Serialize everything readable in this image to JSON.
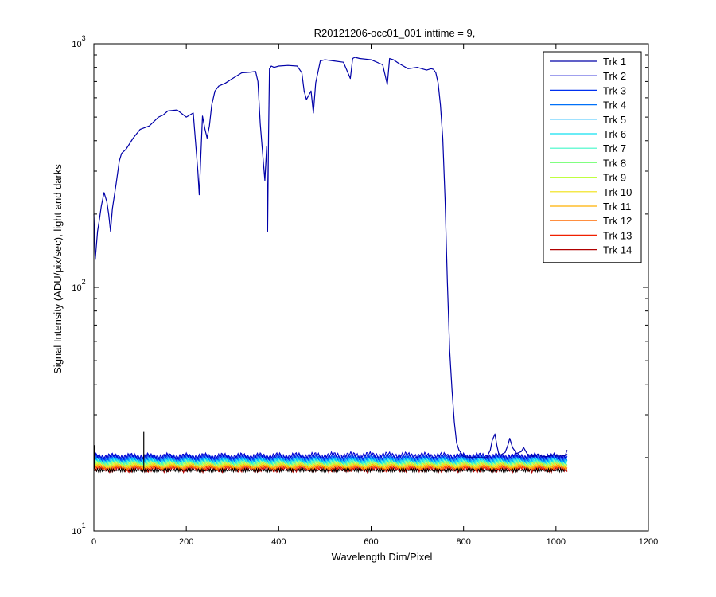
{
  "chart_data": {
    "type": "line",
    "title": "R20121206-occ01_001 inttime = 9,",
    "xlabel": "Wavelength Dim/Pixel",
    "ylabel": "Signal Intensity (ADU/pix/sec), light and darks",
    "xlim": [
      0,
      1200
    ],
    "ylim": [
      10,
      1000
    ],
    "yscale": "log",
    "x_ticks": [
      0,
      200,
      400,
      600,
      800,
      1000,
      1200
    ],
    "y_ticks": [
      {
        "base": "10",
        "exp": "1"
      },
      {
        "base": "10",
        "exp": "2"
      },
      {
        "base": "10",
        "exp": "3"
      }
    ],
    "legend_position": "top-right",
    "series": [
      {
        "name": "Trk 1",
        "color": "#0000A8",
        "x": [
          0,
          3,
          8,
          12,
          16,
          22,
          28,
          32,
          36,
          40,
          48,
          55,
          60,
          70,
          85,
          100,
          120,
          140,
          150,
          160,
          180,
          200,
          215,
          225,
          228,
          235,
          240,
          245,
          250,
          255,
          262,
          270,
          285,
          300,
          320,
          340,
          350,
          355,
          360,
          366,
          370,
          374,
          376,
          378,
          380,
          384,
          390,
          400,
          420,
          440,
          450,
          455,
          460,
          470,
          475,
          480,
          490,
          500,
          520,
          540,
          555,
          560,
          565,
          575,
          600,
          625,
          635,
          640,
          648,
          660,
          680,
          700,
          720,
          730,
          735,
          740,
          745,
          750,
          755,
          760,
          765,
          770,
          775,
          780,
          785,
          790,
          800,
          820,
          850,
          858,
          862,
          868,
          872,
          876,
          880,
          890,
          896,
          900,
          906,
          915,
          925,
          930,
          938,
          950,
          958,
          962,
          968,
          975,
          980,
          990,
          996,
          1000,
          1010,
          1020,
          1024
        ],
        "values": [
          200,
          130,
          170,
          190,
          215,
          245,
          225,
          200,
          170,
          210,
          265,
          330,
          355,
          370,
          410,
          445,
          460,
          500,
          510,
          530,
          535,
          500,
          520,
          300,
          240,
          505,
          450,
          410,
          460,
          560,
          640,
          670,
          690,
          720,
          760,
          765,
          770,
          700,
          470,
          340,
          275,
          380,
          170,
          420,
          790,
          810,
          800,
          810,
          815,
          810,
          760,
          640,
          590,
          640,
          520,
          690,
          850,
          860,
          850,
          840,
          720,
          870,
          880,
          870,
          860,
          820,
          680,
          870,
          860,
          830,
          790,
          800,
          780,
          790,
          785,
          760,
          690,
          560,
          410,
          230,
          105,
          55,
          38,
          28,
          23,
          21.5,
          20.2,
          20,
          20,
          21.5,
          23.5,
          25,
          22.5,
          20.8,
          20.5,
          21,
          22.5,
          24,
          22,
          20.8,
          21.2,
          22,
          20.7,
          20.2,
          20.5,
          20.7,
          20.3,
          20.2,
          20.2,
          20.4,
          20.6,
          20.3,
          20.3,
          20.4,
          21.5
        ]
      },
      {
        "name": "Trk 2",
        "color": "#0000D0",
        "level": 20.3
      },
      {
        "name": "Trk 3",
        "color": "#0030F0",
        "level": 20.1
      },
      {
        "name": "Trk 4",
        "color": "#0070F8",
        "level": 19.9
      },
      {
        "name": "Trk 5",
        "color": "#00B0FF",
        "level": 19.7
      },
      {
        "name": "Trk 6",
        "color": "#10E0F0",
        "level": 19.5
      },
      {
        "name": "Trk 7",
        "color": "#40F8C8",
        "level": 19.3
      },
      {
        "name": "Trk 8",
        "color": "#80FF80",
        "level": 19.1
      },
      {
        "name": "Trk 9",
        "color": "#C0FF40",
        "level": 18.9
      },
      {
        "name": "Trk 10",
        "color": "#F0E010",
        "level": 18.7
      },
      {
        "name": "Trk 11",
        "color": "#FFB000",
        "level": 18.5
      },
      {
        "name": "Trk 12",
        "color": "#FF6A00",
        "level": 18.3
      },
      {
        "name": "Trk 13",
        "color": "#F02000",
        "level": 18.1
      },
      {
        "name": "Trk 14",
        "color": "#B00000",
        "level": 17.9
      }
    ],
    "annotations": [
      {
        "type": "spike",
        "x": 108,
        "from": 18,
        "to": 25.5
      }
    ]
  }
}
